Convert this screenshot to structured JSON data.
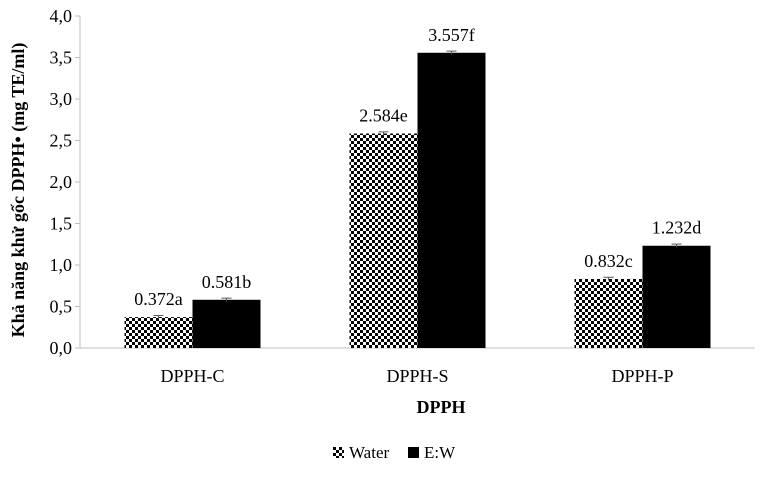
{
  "chart_data": {
    "type": "bar",
    "title": "",
    "xlabel": "DPPH",
    "ylabel": "Khả năng khử gốc DPPH• (mg TE/ml)",
    "categories": [
      "DPPH-C",
      "DPPH-S",
      "DPPH-P"
    ],
    "series": [
      {
        "name": "Water",
        "values": [
          0.372,
          2.584,
          0.832
        ],
        "labels": [
          "0.372a",
          "2.584e",
          "0.832c"
        ],
        "pattern": "checkered",
        "color": "#000000"
      },
      {
        "name": "E:W",
        "values": [
          0.581,
          3.557,
          1.232
        ],
        "labels": [
          "0.581b",
          "3.557f",
          "1.232d"
        ],
        "pattern": "solid",
        "color": "#000000"
      }
    ],
    "ylim": [
      0,
      4.0
    ],
    "yticks": [
      "0,0",
      "0,5",
      "1,0",
      "1,5",
      "2,0",
      "2,5",
      "3,0",
      "3,5",
      "4,0"
    ],
    "grid": false,
    "error_bars": true,
    "legend_position": "bottom"
  }
}
